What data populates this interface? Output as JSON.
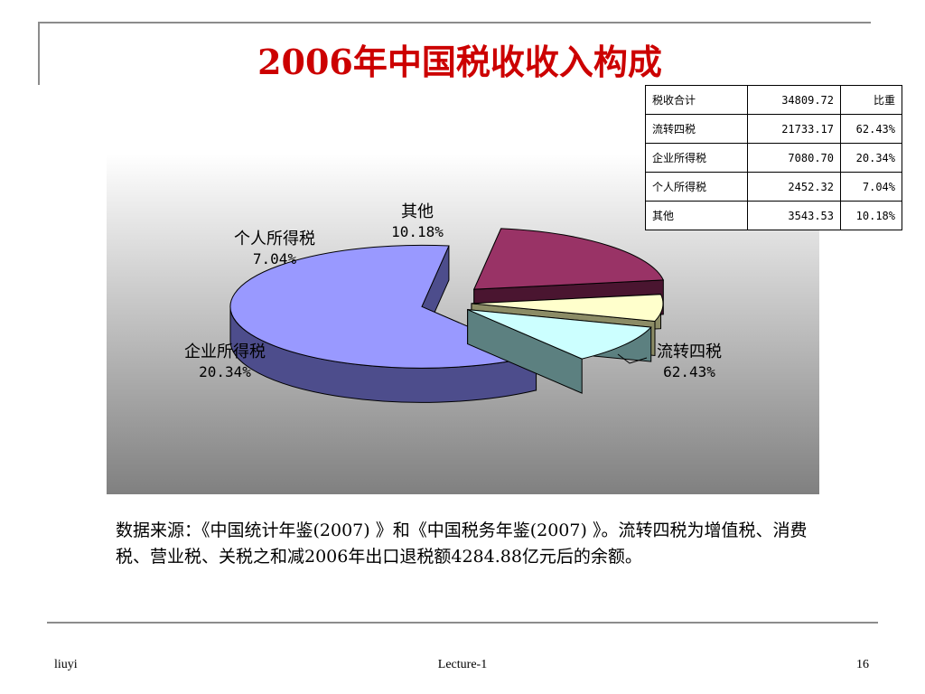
{
  "title": "2006年中国税收收入构成",
  "chart_data": {
    "type": "pie",
    "title": "",
    "categories": [
      "流转四税",
      "企业所得税",
      "个人所得税",
      "其他"
    ],
    "values": [
      62.43,
      20.34,
      7.04,
      10.18
    ],
    "value_labels": [
      "62.43%",
      "20.34%",
      "7.04%",
      "10.18%"
    ],
    "slice_colors": [
      "#9999ff",
      "#993366",
      "#ffffcc",
      "#ccffff"
    ],
    "slice_side_colors": [
      "#4d4d8c",
      "#4a1530",
      "#8c8c66",
      "#5c8080"
    ],
    "legend": "none",
    "style": "3d-exploded",
    "background": "vertical gradient white to gray"
  },
  "table": {
    "rows": [
      {
        "label": "税收合计",
        "value": "34809.72",
        "share": "比重"
      },
      {
        "label": "流转四税",
        "value": "21733.17",
        "share": "62.43%"
      },
      {
        "label": "企业所得税",
        "value": "7080.70",
        "share": "20.34%"
      },
      {
        "label": "个人所得税",
        "value": "2452.32",
        "share": "7.04%"
      },
      {
        "label": "其他",
        "value": "3543.53",
        "share": "10.18%"
      }
    ]
  },
  "note": "数据来源：《中国统计年鉴(2007) 》和《中国税务年鉴(2007) 》。流转四税为增值税、消费税、营业税、关税之和减2006年出口退税额4284.88亿元后的余额。",
  "footer": {
    "left": "liuyi",
    "center": "Lecture-1",
    "right": "16"
  }
}
